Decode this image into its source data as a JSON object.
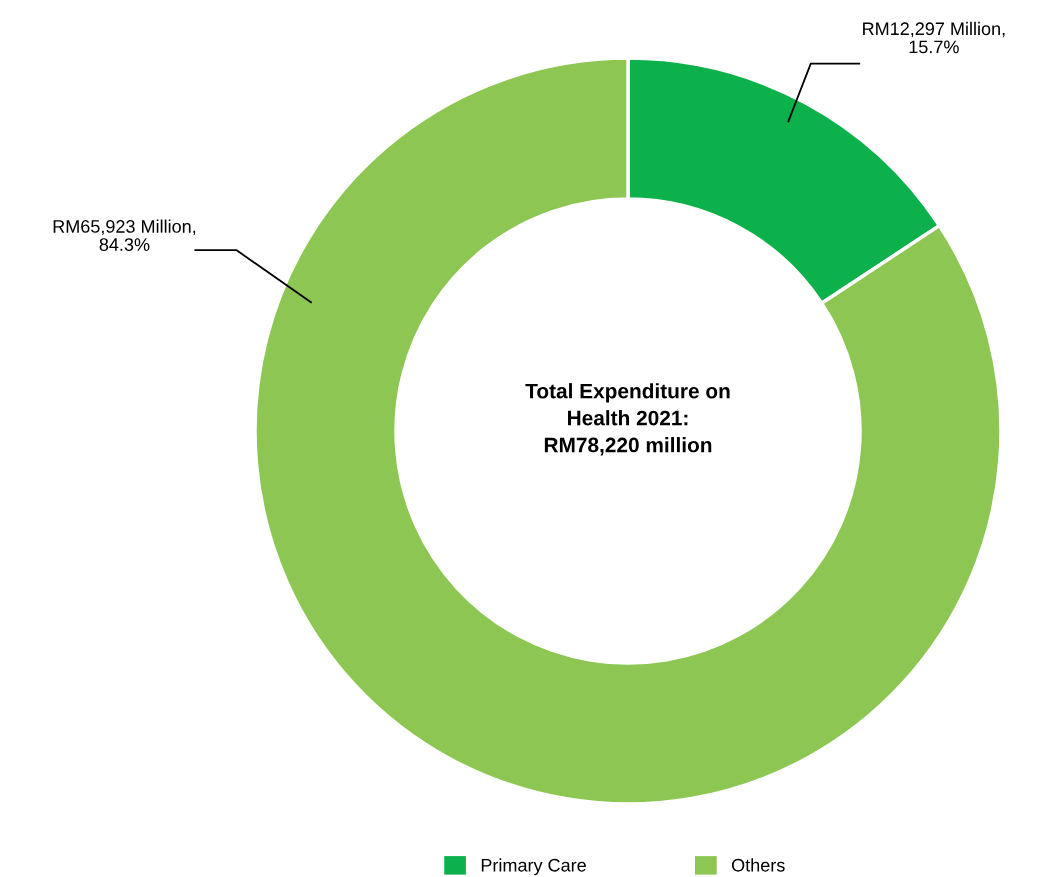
{
  "chart_data": {
    "type": "donut",
    "title": "Total Expenditure on\nHealth 2021:\nRM78,220 million",
    "categories": [
      "Primary Care",
      "Others"
    ],
    "values": [
      12297,
      65923
    ],
    "value_labels": [
      "RM12,297 Million,\n15.7%",
      "RM65,923 Million,\n84.3%"
    ],
    "colors": [
      "#0db14b",
      "#8dc653"
    ],
    "legend": "bottom"
  }
}
